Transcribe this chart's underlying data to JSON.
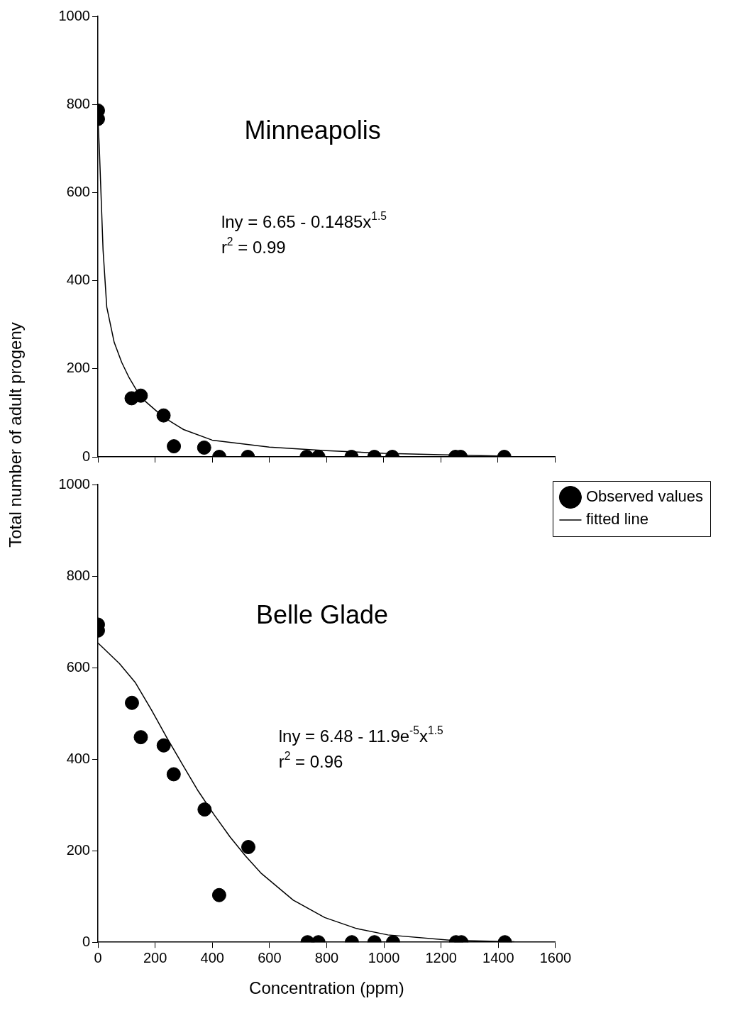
{
  "chart_data": [
    {
      "type": "scatter",
      "title": "Minneapolis",
      "ylabel": "Total number of adult progeny",
      "annotations": [
        "lny = 6.65 - 0.1485x$^{1.5}$",
        "r$^{2}$ = 0.99"
      ],
      "xlim": [
        0,
        1600
      ],
      "xticks": [
        0,
        200,
        400,
        600,
        800,
        1000,
        1200,
        1400,
        1600
      ],
      "ylim": [
        0,
        1000
      ],
      "yticks": [
        0,
        200,
        400,
        600,
        800,
        1000
      ],
      "tick_labels": "y",
      "grid": false,
      "legend": false,
      "series": [
        {
          "type": "scatter",
          "marker": "circle",
          "color": "#000000",
          "x": [
            0,
            0,
            118,
            150,
            230,
            266,
            372,
            425,
            525,
            731,
            772,
            888,
            968,
            1031,
            1252,
            1270,
            1423
          ],
          "values": [
            786,
            767,
            133,
            139,
            94,
            24,
            21,
            0,
            0,
            0,
            0,
            0,
            0,
            0,
            0,
            0,
            0
          ]
        },
        {
          "type": "line",
          "marker": "none",
          "color": "#000000",
          "x": [
            0,
            5,
            18,
            31,
            57,
            83,
            109,
            150,
            230,
            300,
            400,
            600,
            800,
            1000,
            1200,
            1400,
            1420
          ],
          "values": [
            770,
            700,
            470,
            340,
            260,
            215,
            180,
            135,
            90,
            62,
            38,
            22,
            14,
            8,
            5,
            2,
            2
          ]
        }
      ]
    },
    {
      "type": "scatter",
      "title": "Belle Glade",
      "xlabel": "Concentration (ppm)",
      "annotations": [
        "lny = 6.48 - 11.9e$^{-5}$x$^{1.5}$",
        "r$^{2}$ = 0.96"
      ],
      "xlim": [
        0,
        1600
      ],
      "xticks": [
        0,
        200,
        400,
        600,
        800,
        1000,
        1200,
        1400,
        1600
      ],
      "ylim": [
        0,
        1000
      ],
      "yticks": [
        0,
        200,
        400,
        600,
        800,
        1000
      ],
      "grid": false,
      "legend": "right",
      "series": [
        {
          "name": "Observed values",
          "type": "scatter",
          "marker": "circle",
          "color": "#000000",
          "x": [
            0,
            0,
            119,
            150,
            230,
            265,
            373,
            424,
            526,
            733,
            771,
            888,
            967,
            1032,
            1252,
            1271,
            1423
          ],
          "values": [
            694,
            681,
            523,
            448,
            430,
            367,
            290,
            103,
            208,
            0,
            0,
            0,
            0,
            0,
            0,
            0,
            0
          ]
        },
        {
          "name": "fitted line",
          "type": "line",
          "marker": "none",
          "color": "#000000",
          "x": [
            0,
            75,
            130,
            186,
            241,
            296,
            351,
            407,
            462,
            517,
            572,
            683,
            793,
            904,
            1014,
            1235,
            1456
          ],
          "values": [
            654,
            609,
            568,
            509,
            447,
            388,
            330,
            278,
            230,
            188,
            150,
            92,
            54,
            30,
            16,
            4,
            1
          ]
        }
      ]
    }
  ]
}
